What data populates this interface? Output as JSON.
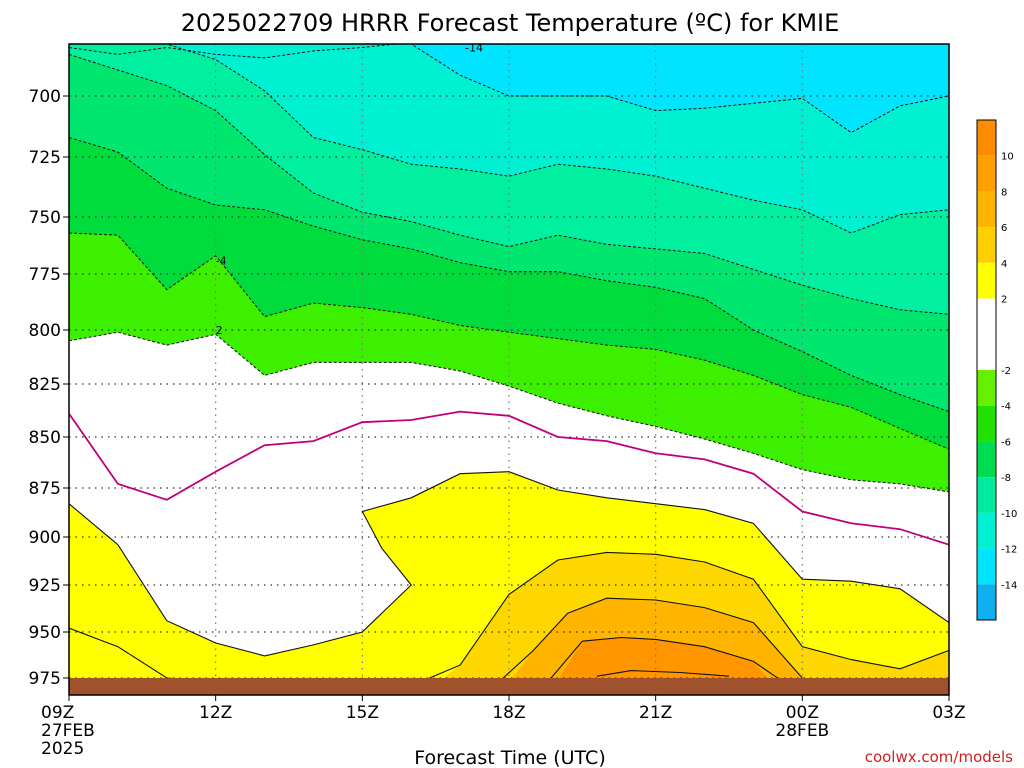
{
  "title": "2025022709 HRRR Forecast Temperature (ºC) for KMIE",
  "xlabel": "Forecast Time (UTC)",
  "credit": "coolwx.com/models",
  "colors": {
    "ground": "#a0522d",
    "freezing_line": "#c0007a",
    "credit": "#d02020"
  },
  "chart_data": {
    "type": "contour",
    "title": "2025022709 HRRR Forecast Temperature (ºC) for KMIE",
    "xlabel": "Forecast Time (UTC)",
    "ylabel": "",
    "x_hours": [
      9,
      10,
      11,
      12,
      13,
      14,
      15,
      16,
      17,
      18,
      19,
      20,
      21,
      22,
      23,
      24,
      25,
      26,
      27
    ],
    "x_ticks": [
      {
        "hour": 9,
        "lines": [
          "09Z",
          "27FEB",
          "2025"
        ]
      },
      {
        "hour": 12,
        "lines": [
          "12Z"
        ]
      },
      {
        "hour": 15,
        "lines": [
          "15Z"
        ]
      },
      {
        "hour": 18,
        "lines": [
          "18Z"
        ]
      },
      {
        "hour": 21,
        "lines": [
          "21Z"
        ]
      },
      {
        "hour": 24,
        "lines": [
          "00Z",
          "28FEB"
        ]
      },
      {
        "hour": 27,
        "lines": [
          "03Z"
        ]
      }
    ],
    "y_ticks": [
      700,
      725,
      750,
      775,
      800,
      825,
      850,
      875,
      900,
      925,
      950,
      975
    ],
    "ylim": [
      980,
      670
    ],
    "xlim": [
      9,
      27
    ],
    "grid": true,
    "ground_level_hpa": 975,
    "freezing_line_level": 0,
    "bands": [
      {
        "level": -16,
        "color": "#0fb0f0"
      },
      {
        "level": -14,
        "color": "#00e4ff"
      },
      {
        "level": -12,
        "color": "#00f0d2"
      },
      {
        "level": -10,
        "color": "#00f0a0"
      },
      {
        "level": -8,
        "color": "#00e66e"
      },
      {
        "level": -6,
        "color": "#00dc3c"
      },
      {
        "level": -4,
        "color": "#3cf000"
      },
      {
        "level": -2,
        "color": "#ffffff"
      },
      {
        "level": 2,
        "color": "#ffff00"
      },
      {
        "level": 4,
        "color": "#ffd700"
      },
      {
        "level": 6,
        "color": "#ffb400"
      },
      {
        "level": 8,
        "color": "#ff9600"
      }
    ],
    "contours": [
      {
        "level": -14,
        "style": "dashed",
        "p": [
          672,
          676,
          672,
          676,
          678,
          674,
          672,
          669,
          670,
          670,
          670,
          670,
          670,
          670,
          670,
          670,
          670,
          670,
          670
        ]
      },
      {
        "level": -12,
        "style": "dashed",
        "p": [
          670,
          670,
          670,
          670,
          670,
          670,
          670,
          670,
          688,
          700,
          700,
          700,
          706,
          705,
          703,
          701,
          715,
          704,
          700
        ]
      },
      {
        "level": -10,
        "style": "dashed",
        "p": [
          670,
          670,
          670,
          679,
          697,
          717,
          722,
          728,
          730,
          733,
          728,
          730,
          733,
          738,
          743,
          747,
          757,
          749,
          747
        ]
      },
      {
        "level": -8,
        "style": "dashed",
        "p": [
          676,
          685,
          694,
          706,
          724,
          740,
          748,
          752,
          758,
          763,
          758,
          762,
          764,
          766,
          773,
          780,
          786,
          791,
          793
        ]
      },
      {
        "level": -6,
        "style": "dashed",
        "p": [
          717,
          723,
          738,
          745,
          747,
          754,
          760,
          764,
          770,
          774,
          774,
          778,
          781,
          786,
          800,
          810,
          821,
          830,
          838
        ]
      },
      {
        "level": -4,
        "style": "dashed",
        "p": [
          757,
          758,
          782,
          767,
          794,
          788,
          790,
          793,
          798,
          801,
          804,
          807,
          809,
          814,
          821,
          830,
          836,
          846,
          856
        ]
      },
      {
        "level": -2,
        "style": "dashed",
        "p": [
          805,
          801,
          807,
          802,
          821,
          815,
          815,
          815,
          819,
          826,
          834,
          840,
          845,
          851,
          858,
          866,
          871,
          873,
          877
        ]
      },
      {
        "level": 0,
        "style": "freezing",
        "p": [
          839,
          873,
          881,
          867,
          854,
          852,
          843,
          842,
          838,
          840,
          850,
          852,
          858,
          861,
          868,
          887,
          893,
          896,
          904
        ]
      }
    ],
    "contour_labels": [
      {
        "text": "-14",
        "hour": 17.1,
        "p": 672
      },
      {
        "text": "-4",
        "hour": 12.0,
        "p": 769
      },
      {
        "text": "2",
        "hour": 12.0,
        "p": 800
      }
    ],
    "colorbar": {
      "ticks": [
        10,
        8,
        6,
        4,
        2,
        -2,
        -4,
        -6,
        -8,
        -10,
        -12,
        -14
      ],
      "range": [
        -16,
        12
      ]
    }
  }
}
